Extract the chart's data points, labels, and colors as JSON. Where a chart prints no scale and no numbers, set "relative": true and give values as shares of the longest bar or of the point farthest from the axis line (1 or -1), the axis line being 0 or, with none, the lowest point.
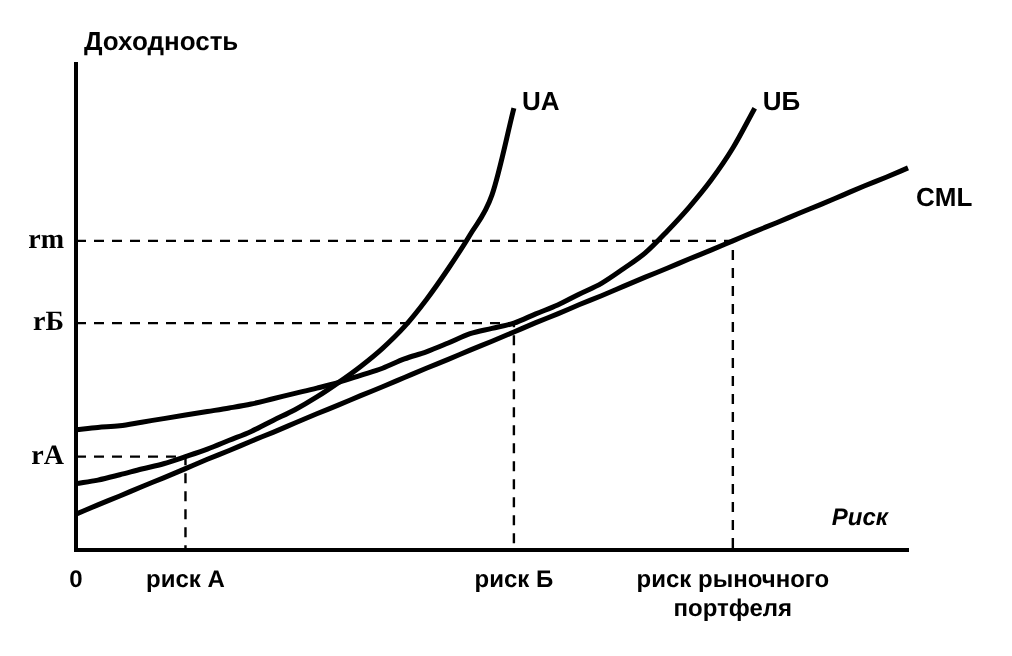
{
  "chart_data": {
    "type": "line",
    "relative": true,
    "ylabel": "Доходность",
    "xlabel": "Риск",
    "legend": false,
    "grid": false,
    "marker": "none",
    "categories": [
      "0",
      null,
      null,
      null,
      null,
      "риск А",
      null,
      null,
      null,
      null,
      null,
      null,
      null,
      null,
      null,
      null,
      null,
      null,
      null,
      null,
      "риск Б",
      null,
      null,
      null,
      null,
      null,
      null,
      null,
      null,
      null,
      "риск рыночного портфеля",
      null,
      null,
      null,
      null,
      null,
      null,
      null,
      null
    ],
    "annotations": [
      "rA",
      "rБ",
      "rm"
    ],
    "series": [
      {
        "name": "UA",
        "color": "#000000",
        "values": [
          0.151,
          0.159,
          0.171,
          0.184,
          0.196,
          0.212,
          0.229,
          0.249,
          0.269,
          0.294,
          0.318,
          0.347,
          0.38,
          0.416,
          0.457,
          0.506,
          0.567,
          0.637,
          0.714,
          0.804,
          1,
          null,
          null,
          null,
          null,
          null,
          null,
          null,
          null,
          null,
          null,
          null,
          null,
          null,
          null,
          null,
          null,
          null,
          null
        ]
      },
      {
        "name": "UБ",
        "color": "#000000",
        "values": [
          0.273,
          0.278,
          0.282,
          0.29,
          0.298,
          0.306,
          0.314,
          0.322,
          0.331,
          0.343,
          0.355,
          0.367,
          0.38,
          0.396,
          0.412,
          0.433,
          0.449,
          0.469,
          0.49,
          0.502,
          0.514,
          0.535,
          0.555,
          0.58,
          0.604,
          0.637,
          0.673,
          0.722,
          0.776,
          0.837,
          0.91,
          1,
          null,
          null,
          null,
          null,
          null,
          null,
          null
        ]
      },
      {
        "name": "CML",
        "color": "#000000",
        "values": [
          0.082,
          0.103,
          0.123,
          0.144,
          0.164,
          0.185,
          0.206,
          0.226,
          0.247,
          0.267,
          0.288,
          0.309,
          0.329,
          0.35,
          0.37,
          0.391,
          0.412,
          0.432,
          0.453,
          0.473,
          0.494,
          0.515,
          0.535,
          0.556,
          0.576,
          0.597,
          0.618,
          0.638,
          0.659,
          0.679,
          0.7,
          0.721,
          0.741,
          0.762,
          0.782,
          0.803,
          0.824,
          0.844,
          0.865
        ]
      }
    ]
  }
}
